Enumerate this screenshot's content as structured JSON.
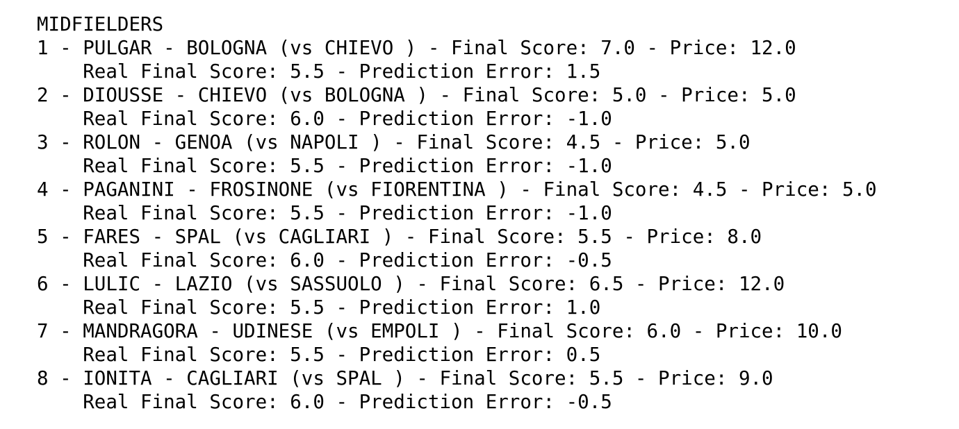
{
  "heading": "MIDFIELDERS",
  "entries": [
    {
      "line1": "1 - PULGAR - BOLOGNA (vs CHIEVO ) - Final Score: 7.0 - Price: 12.0",
      "line2": "Real Final Score: 5.5 - Prediction Error: 1.5"
    },
    {
      "line1": "2 - DIOUSSE - CHIEVO (vs BOLOGNA ) - Final Score: 5.0 - Price: 5.0",
      "line2": "Real Final Score: 6.0 - Prediction Error: -1.0"
    },
    {
      "line1": "3 - ROLON - GENOA (vs NAPOLI ) - Final Score: 4.5 - Price: 5.0",
      "line2": "Real Final Score: 5.5 - Prediction Error: -1.0"
    },
    {
      "line1": "4 - PAGANINI - FROSINONE (vs FIORENTINA ) - Final Score: 4.5 - Price: 5.0",
      "line2": "Real Final Score: 5.5 - Prediction Error: -1.0"
    },
    {
      "line1": "5 - FARES - SPAL (vs CAGLIARI ) - Final Score: 5.5 - Price: 8.0",
      "line2": "Real Final Score: 6.0 - Prediction Error: -0.5"
    },
    {
      "line1": "6 - LULIC - LAZIO (vs SASSUOLO ) - Final Score: 6.5 - Price: 12.0",
      "line2": "Real Final Score: 5.5 - Prediction Error: 1.0"
    },
    {
      "line1": "7 - MANDRAGORA - UDINESE (vs EMPOLI ) - Final Score: 6.0 - Price: 10.0",
      "line2": "Real Final Score: 5.5 - Prediction Error: 0.5"
    },
    {
      "line1": "8 - IONITA - CAGLIARI (vs SPAL ) - Final Score: 5.5 - Price: 9.0",
      "line2": "Real Final Score: 6.0 - Prediction Error: -0.5"
    }
  ]
}
